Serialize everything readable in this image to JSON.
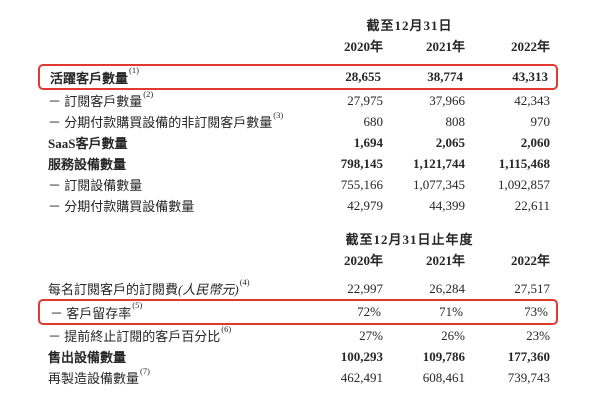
{
  "page": {
    "background": "#ffffff",
    "text_color": "#262626",
    "highlight_box_color": "#e03a2f"
  },
  "table1": {
    "period_header": "截至12月31日",
    "years": [
      "2020年",
      "2021年",
      "2022年"
    ],
    "rows": [
      {
        "label": "活躍客戶數量",
        "sup": "(1)",
        "values": [
          "28,655",
          "38,774",
          "43,313"
        ]
      },
      {
        "label": "－ 訂閱客戶數量",
        "sup": "(2)",
        "values": [
          "27,975",
          "37,966",
          "42,343"
        ]
      },
      {
        "label": "－ 分期付款購買設備的非訂閱客戶數量",
        "sup": "(3)",
        "values": [
          "680",
          "808",
          "970"
        ]
      },
      {
        "label": "SaaS客戶數量",
        "sup": "",
        "values": [
          "1,694",
          "2,065",
          "2,060"
        ]
      },
      {
        "label": "服務設備數量",
        "sup": "",
        "values": [
          "798,145",
          "1,121,744",
          "1,115,468"
        ]
      },
      {
        "label": "－ 訂閱設備數量",
        "sup": "",
        "values": [
          "755,166",
          "1,077,345",
          "1,092,857"
        ]
      },
      {
        "label": "－ 分期付款購買設備數量",
        "sup": "",
        "values": [
          "42,979",
          "44,399",
          "22,611"
        ]
      }
    ]
  },
  "table2": {
    "period_header": "截至12月31日止年度",
    "years": [
      "2020年",
      "2021年",
      "2022年"
    ],
    "rows": [
      {
        "label": "每名訂閱客戶的訂閱費",
        "label_italic": "(人民幣元)",
        "sup": "(4)",
        "values": [
          "22,997",
          "26,284",
          "27,517"
        ]
      },
      {
        "label": "－ 客戶留存率",
        "sup": "(5)",
        "values": [
          "72%",
          "71%",
          "73%"
        ]
      },
      {
        "label": "－ 提前終止訂閱的客戶百分比",
        "sup": "(6)",
        "values": [
          "27%",
          "26%",
          "23%"
        ]
      },
      {
        "label": "售出設備數量",
        "sup": "",
        "values": [
          "100,293",
          "109,786",
          "177,360"
        ]
      },
      {
        "label": "再製造設備數量",
        "sup": "(7)",
        "values": [
          "462,491",
          "608,461",
          "739,743"
        ]
      }
    ]
  }
}
